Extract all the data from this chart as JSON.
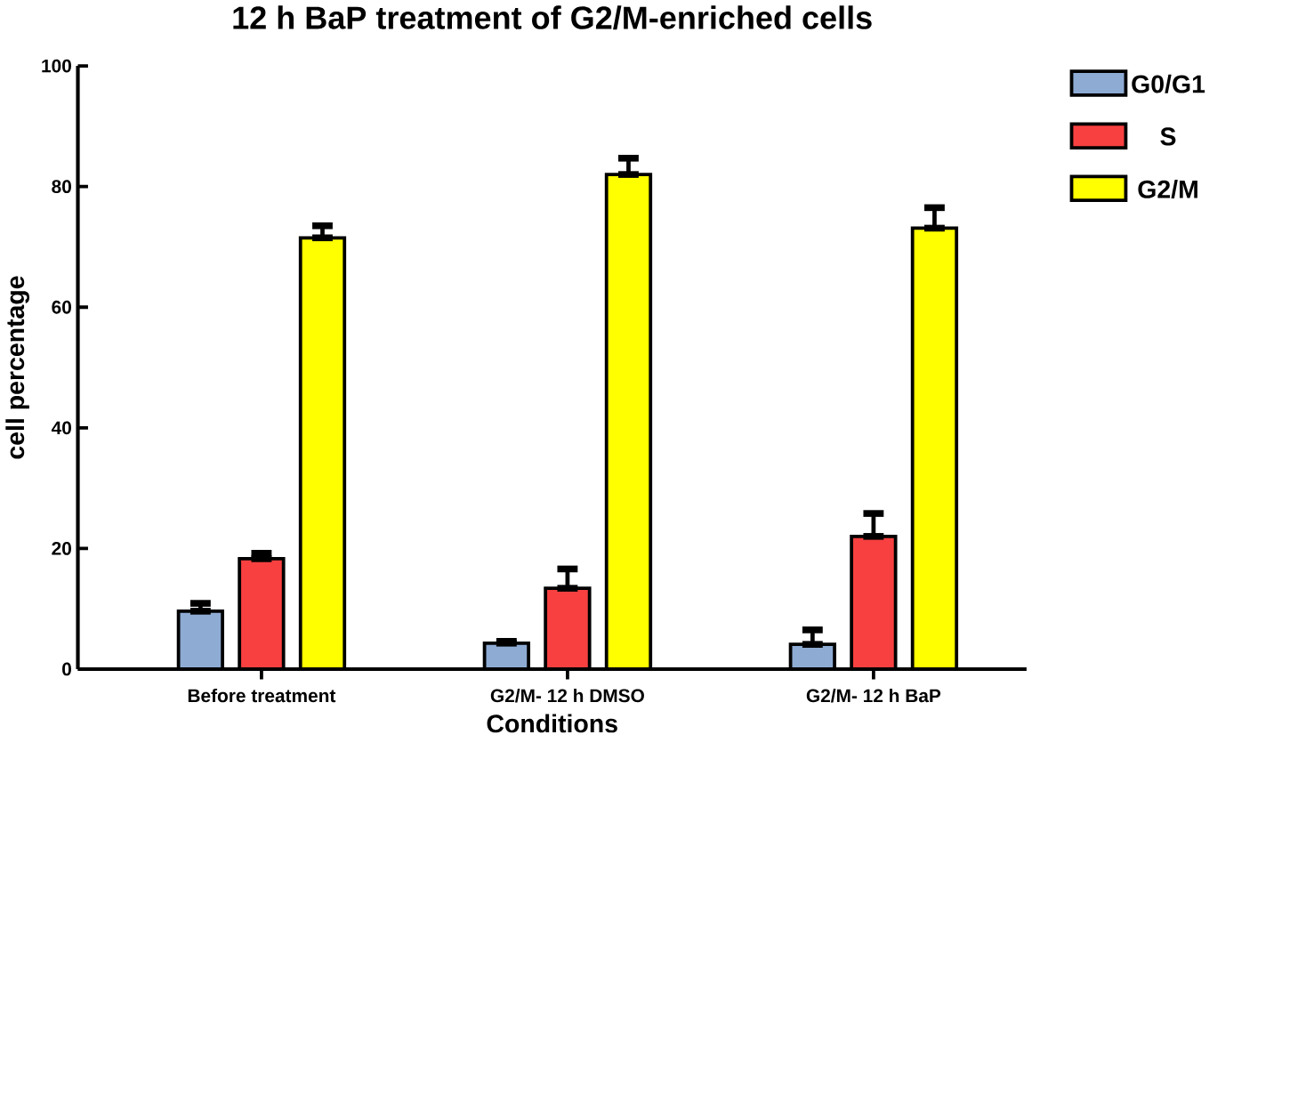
{
  "chart_data": {
    "type": "bar",
    "title": "12 h BaP treatment of G2/M-enriched cells",
    "xlabel": "Conditions",
    "ylabel": "cell percentage",
    "categories": [
      "Before treatment",
      "G2/M- 12 h DMSO",
      "G2/M- 12 h BaP"
    ],
    "series": [
      {
        "name": "G0/G1",
        "color": "#8eabd3",
        "values": [
          9.6,
          4.3,
          4.1
        ],
        "errors": [
          [
            9.6,
            10.9
          ],
          [
            4.3,
            4.6
          ],
          [
            4.1,
            6.5
          ]
        ]
      },
      {
        "name": "S",
        "color": "#f84040",
        "values": [
          18.3,
          13.4,
          22.0
        ],
        "errors": [
          [
            18.3,
            19.2
          ],
          [
            13.4,
            16.6
          ],
          [
            22.0,
            25.8
          ]
        ]
      },
      {
        "name": "G2/M",
        "color": "#ffff00",
        "values": [
          71.5,
          82.0,
          73.1
        ],
        "errors": [
          [
            71.5,
            73.5
          ],
          [
            82.0,
            84.7
          ],
          [
            73.1,
            76.5
          ]
        ]
      }
    ],
    "ylim": [
      0,
      100
    ],
    "yticks": [
      0,
      20,
      40,
      60,
      80,
      100
    ],
    "legend": "top right"
  }
}
